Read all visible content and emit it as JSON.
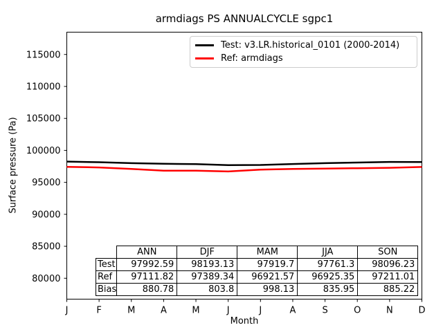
{
  "chart_data": {
    "type": "line",
    "title": "armdiags PS ANNUALCYCLE sgpc1",
    "xlabel": "Month",
    "ylabel": "Surface pressure (Pa)",
    "x_categories": [
      "J",
      "F",
      "M",
      "A",
      "M",
      "J",
      "J",
      "A",
      "S",
      "O",
      "N",
      "D"
    ],
    "yticks": [
      80000,
      85000,
      90000,
      95000,
      100000,
      105000,
      110000,
      115000
    ],
    "ylim": [
      76730,
      118490
    ],
    "grid": false,
    "legend_position": "upper right",
    "series": [
      {
        "name": "Test: v3.LR.historical_0101 (2000-2014)",
        "color": "#000000",
        "values": [
          98250,
          98150,
          98000,
          97900,
          97860,
          97700,
          97720,
          97865,
          98000,
          98100,
          98190,
          98180
        ]
      },
      {
        "name": "Ref: armdiags",
        "color": "#ff0000",
        "values": [
          97430,
          97330,
          97100,
          96830,
          96835,
          96700,
          96990,
          97086,
          97150,
          97210,
          97273,
          97408
        ]
      }
    ],
    "annotation_table": {
      "col_headers": [
        "ANN",
        "DJF",
        "MAM",
        "JJA",
        "SON"
      ],
      "rows": [
        {
          "label": "Test",
          "values": [
            "97992.59",
            "98193.13",
            "97919.7",
            "97761.3",
            "98096.23"
          ]
        },
        {
          "label": "Ref",
          "values": [
            "97111.82",
            "97389.34",
            "96921.57",
            "96925.35",
            "97211.01"
          ]
        },
        {
          "label": "Bias",
          "values": [
            "880.78",
            "803.8",
            "998.13",
            "835.95",
            "885.22"
          ]
        }
      ]
    }
  }
}
